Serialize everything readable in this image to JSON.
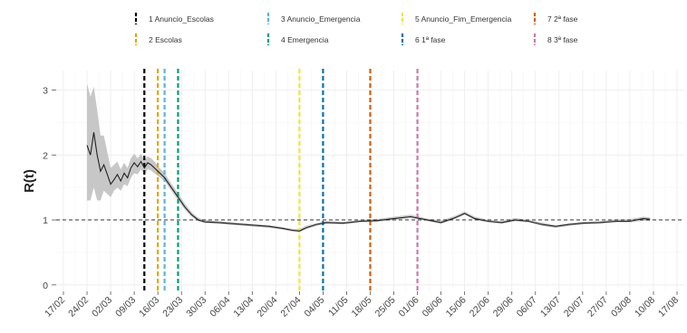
{
  "chart_data": {
    "type": "line",
    "title": "",
    "xlabel": "",
    "ylabel": "R(t)",
    "ylim": [
      -0.1,
      3.3
    ],
    "yticks": [
      0,
      1,
      2,
      3
    ],
    "x_date_range": [
      "2020-02-17",
      "2020-08-17"
    ],
    "xtick_labels": [
      "17/02",
      "24/02",
      "02/03",
      "09/03",
      "16/03",
      "23/03",
      "30/03",
      "06/04",
      "13/04",
      "20/04",
      "27/04",
      "04/05",
      "11/05",
      "18/05",
      "25/05",
      "01/06",
      "08/06",
      "15/06",
      "22/06",
      "29/06",
      "06/07",
      "13/07",
      "20/07",
      "27/07",
      "03/08",
      "10/08",
      "17/08"
    ],
    "reference_line": {
      "y": 1,
      "style": "dashed"
    },
    "grid": true,
    "legend_position": "top",
    "series": {
      "x": [
        "2020-02-24",
        "2020-02-25",
        "2020-02-26",
        "2020-02-27",
        "2020-02-28",
        "2020-02-29",
        "2020-03-01",
        "2020-03-02",
        "2020-03-03",
        "2020-03-04",
        "2020-03-05",
        "2020-03-06",
        "2020-03-07",
        "2020-03-08",
        "2020-03-09",
        "2020-03-10",
        "2020-03-11",
        "2020-03-12",
        "2020-03-13",
        "2020-03-14",
        "2020-03-15",
        "2020-03-16",
        "2020-03-18",
        "2020-03-20",
        "2020-03-22",
        "2020-03-24",
        "2020-03-26",
        "2020-03-28",
        "2020-03-30",
        "2020-04-03",
        "2020-04-08",
        "2020-04-13",
        "2020-04-18",
        "2020-04-22",
        "2020-04-25",
        "2020-04-27",
        "2020-04-29",
        "2020-05-02",
        "2020-05-05",
        "2020-05-10",
        "2020-05-15",
        "2020-05-20",
        "2020-05-25",
        "2020-05-30",
        "2020-06-04",
        "2020-06-08",
        "2020-06-12",
        "2020-06-15",
        "2020-06-18",
        "2020-06-22",
        "2020-06-26",
        "2020-06-30",
        "2020-07-04",
        "2020-07-08",
        "2020-07-12",
        "2020-07-16",
        "2020-07-20",
        "2020-07-25",
        "2020-07-30",
        "2020-08-03",
        "2020-08-07",
        "2020-08-09"
      ],
      "y": [
        2.15,
        2.0,
        2.35,
        2.0,
        1.75,
        1.85,
        1.7,
        1.55,
        1.62,
        1.7,
        1.6,
        1.72,
        1.65,
        1.8,
        1.88,
        1.82,
        1.9,
        1.8,
        1.88,
        1.85,
        1.8,
        1.75,
        1.65,
        1.5,
        1.35,
        1.2,
        1.08,
        1.0,
        0.97,
        0.96,
        0.94,
        0.92,
        0.9,
        0.87,
        0.84,
        0.83,
        0.88,
        0.93,
        0.96,
        0.95,
        0.98,
        0.99,
        1.02,
        1.05,
        1.0,
        0.96,
        1.03,
        1.1,
        1.02,
        0.98,
        0.96,
        1.0,
        0.98,
        0.93,
        0.9,
        0.93,
        0.95,
        0.96,
        0.98,
        0.98,
        1.02,
        1.01
      ],
      "lower": [
        1.3,
        1.3,
        1.5,
        1.3,
        1.3,
        1.45,
        1.4,
        1.35,
        1.45,
        1.5,
        1.45,
        1.55,
        1.52,
        1.65,
        1.72,
        1.7,
        1.78,
        1.7,
        1.78,
        1.76,
        1.72,
        1.68,
        1.6,
        1.45,
        1.3,
        1.16,
        1.05,
        0.98,
        0.95,
        0.94,
        0.92,
        0.9,
        0.88,
        0.85,
        0.82,
        0.81,
        0.86,
        0.91,
        0.94,
        0.93,
        0.96,
        0.97,
        1.0,
        1.03,
        0.98,
        0.94,
        1.01,
        1.08,
        1.0,
        0.96,
        0.94,
        0.98,
        0.96,
        0.91,
        0.88,
        0.91,
        0.93,
        0.94,
        0.96,
        0.96,
        0.99,
        0.98
      ],
      "upper": [
        3.1,
        2.9,
        3.05,
        2.7,
        2.3,
        2.3,
        2.05,
        1.8,
        1.85,
        1.9,
        1.78,
        1.88,
        1.8,
        1.95,
        2.02,
        1.95,
        2.02,
        1.92,
        1.98,
        1.95,
        1.9,
        1.83,
        1.72,
        1.56,
        1.41,
        1.25,
        1.12,
        1.03,
        1.0,
        0.98,
        0.96,
        0.94,
        0.92,
        0.89,
        0.86,
        0.86,
        0.91,
        0.95,
        0.98,
        0.97,
        1.0,
        1.01,
        1.05,
        1.08,
        1.02,
        0.99,
        1.06,
        1.13,
        1.05,
        1.0,
        0.98,
        1.03,
        1.0,
        0.96,
        0.92,
        0.95,
        0.97,
        0.98,
        1.01,
        1.01,
        1.05,
        1.04
      ]
    },
    "events": [
      {
        "label": "1 Anuncio_Escolas",
        "date": "2020-03-12",
        "color": "#000000"
      },
      {
        "label": "2 Escolas",
        "date": "2020-03-16",
        "color": "#e0a800"
      },
      {
        "label": "3 Anuncio_Emergencia",
        "date": "2020-03-18",
        "color": "#56b4e9"
      },
      {
        "label": "4 Emergencia",
        "date": "2020-03-22",
        "color": "#009e73"
      },
      {
        "label": "5 Anuncio_Fim_Emergencia",
        "date": "2020-04-27",
        "color": "#f0e442"
      },
      {
        "label": "6 1ª fase",
        "date": "2020-05-04",
        "color": "#0072b2"
      },
      {
        "label": "7 2ª fase",
        "date": "2020-05-18",
        "color": "#d55e00"
      },
      {
        "label": "8 3ª fase",
        "date": "2020-06-01",
        "color": "#cc79a7"
      }
    ]
  }
}
